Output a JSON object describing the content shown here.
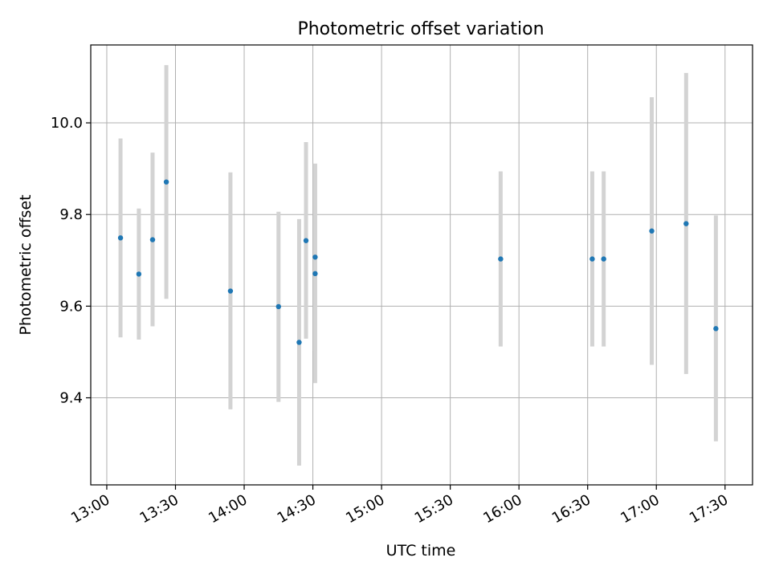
{
  "chart_data": {
    "type": "scatter",
    "title": "Photometric offset variation",
    "xlabel": "UTC time",
    "ylabel": "Photometric offset",
    "x_ticks": [
      "13:00",
      "13:30",
      "14:00",
      "14:30",
      "15:00",
      "15:30",
      "16:00",
      "16:30",
      "17:00",
      "17:30"
    ],
    "y_ticks": [
      "9.4",
      "9.6",
      "9.8",
      "10.0"
    ],
    "xlim": [
      "12:53",
      "17:42"
    ],
    "ylim": [
      9.21,
      10.17
    ],
    "grid": true,
    "colors": {
      "point": "#1f77b4",
      "errorbar": "#d3d3d3",
      "grid": "#b0b0b0"
    },
    "points": [
      {
        "x": "13:06",
        "y": 9.749,
        "ymin": 9.532,
        "ymax": 9.966
      },
      {
        "x": "13:14",
        "y": 9.67,
        "ymin": 9.527,
        "ymax": 9.813
      },
      {
        "x": "13:20",
        "y": 9.745,
        "ymin": 9.556,
        "ymax": 9.935
      },
      {
        "x": "13:26",
        "y": 9.871,
        "ymin": 9.616,
        "ymax": 10.126
      },
      {
        "x": "13:54",
        "y": 9.633,
        "ymin": 9.375,
        "ymax": 9.892
      },
      {
        "x": "14:15",
        "y": 9.599,
        "ymin": 9.391,
        "ymax": 9.806
      },
      {
        "x": "14:24",
        "y": 9.521,
        "ymin": 9.252,
        "ymax": 9.79
      },
      {
        "x": "14:27",
        "y": 9.743,
        "ymin": 9.529,
        "ymax": 9.958
      },
      {
        "x": "14:31",
        "y": 9.707,
        "ymin": 9.503,
        "ymax": 9.911
      },
      {
        "x": "14:31",
        "y": 9.671,
        "ymin": 9.432,
        "ymax": 9.911
      },
      {
        "x": "15:52",
        "y": 9.703,
        "ymin": 9.512,
        "ymax": 9.894
      },
      {
        "x": "16:32",
        "y": 9.703,
        "ymin": 9.512,
        "ymax": 9.894
      },
      {
        "x": "16:37",
        "y": 9.703,
        "ymin": 9.512,
        "ymax": 9.894
      },
      {
        "x": "16:58",
        "y": 9.764,
        "ymin": 9.472,
        "ymax": 10.056
      },
      {
        "x": "17:13",
        "y": 9.78,
        "ymin": 9.452,
        "ymax": 10.109
      },
      {
        "x": "17:26",
        "y": 9.551,
        "ymin": 9.305,
        "ymax": 9.798
      }
    ]
  }
}
